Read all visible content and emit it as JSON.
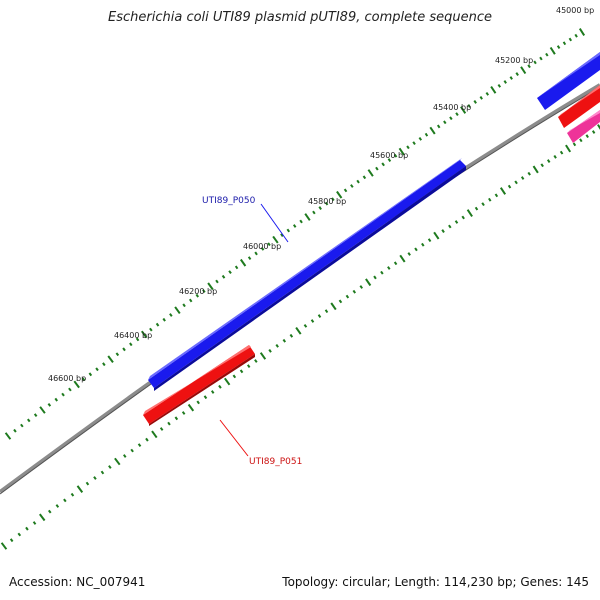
{
  "title": "Escherichia coli UTI89 plasmid pUTI89, complete sequence",
  "footer": {
    "accession": "Accession: NC_007941",
    "summary": "Topology: circular; Length: 114,230 bp; Genes: 145"
  },
  "colors": {
    "backbone": "#8c8c8c",
    "tick": "#1e7a1e",
    "forward_gene": "#1a1aee",
    "reverse_gene": "#ee1111",
    "other_gene": "#ee3399",
    "forward_label": "#1a1aaa",
    "reverse_label": "#cc1111"
  },
  "ruler": {
    "labels": [
      "45000 bp",
      "45200 bp",
      "45400 bp",
      "45600 bp",
      "45800 bp",
      "46000 bp",
      "46200 bp",
      "46400 bp",
      "46600 bp"
    ]
  },
  "genes": {
    "forward_label": "UTI89_P050",
    "reverse_label": "UTI89_P051"
  }
}
